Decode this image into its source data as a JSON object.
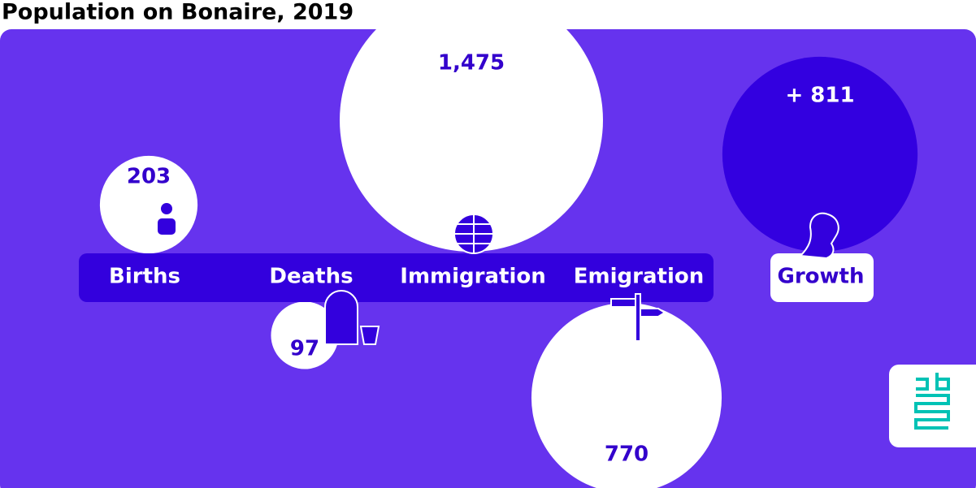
{
  "chart_data": {
    "type": "bubble",
    "title": "Population on Bonaire, 2019",
    "categories": [
      "Births",
      "Deaths",
      "Immigration",
      "Emigration",
      "Growth"
    ],
    "values": [
      203,
      97,
      1475,
      770,
      811
    ],
    "value_labels": [
      "203",
      "97",
      "1,475",
      "770",
      "+ 811"
    ],
    "colors": [
      "#ffffff",
      "#ffffff",
      "#ffffff",
      "#ffffff",
      "#3300e0"
    ]
  }
}
